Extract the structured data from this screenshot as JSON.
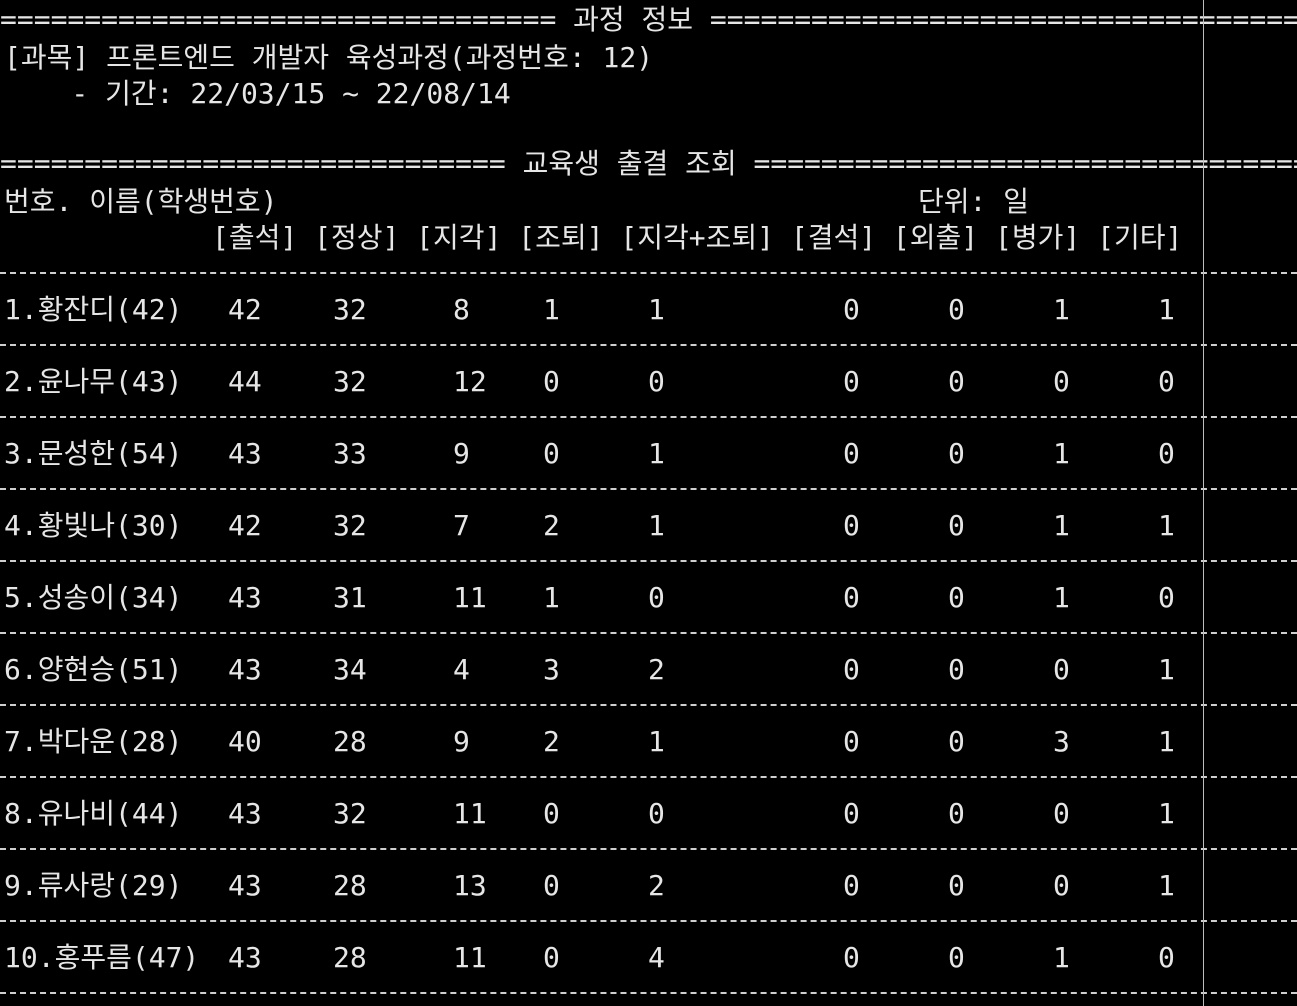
{
  "course_banner": "================================= 과정 정보 =========================================",
  "course": {
    "subject_line": "[과목] 프론트엔드 개발자 육성과정(과정번호: 12)",
    "period_line": "    - 기간: 22/03/15 ~ 22/08/14"
  },
  "attendance_banner": "============================== 교육생 출결 조회 ========================================",
  "header": {
    "name_col": "번호. 이름(학생번호)",
    "unit": "단위: 일",
    "columns": "[출석] [정상] [지각] [조퇴] [지각+조퇴] [결석] [외출] [병가] [기타]"
  },
  "students": [
    {
      "label": "1.황잔디(42)",
      "values": [
        "42",
        "32",
        "8",
        "1",
        "1",
        "0",
        "0",
        "1",
        "1"
      ]
    },
    {
      "label": "2.윤나무(43)",
      "values": [
        "44",
        "32",
        "12",
        "0",
        "0",
        "0",
        "0",
        "0",
        "0"
      ]
    },
    {
      "label": "3.문성한(54)",
      "values": [
        "43",
        "33",
        "9",
        "0",
        "1",
        "0",
        "0",
        "1",
        "0"
      ]
    },
    {
      "label": "4.황빛나(30)",
      "values": [
        "42",
        "32",
        "7",
        "2",
        "1",
        "0",
        "0",
        "1",
        "1"
      ]
    },
    {
      "label": "5.성송이(34)",
      "values": [
        "43",
        "31",
        "11",
        "1",
        "0",
        "0",
        "0",
        "1",
        "0"
      ]
    },
    {
      "label": "6.양현승(51)",
      "values": [
        "43",
        "34",
        "4",
        "3",
        "2",
        "0",
        "0",
        "0",
        "1"
      ]
    },
    {
      "label": "7.박다운(28)",
      "values": [
        "40",
        "28",
        "9",
        "2",
        "1",
        "0",
        "0",
        "3",
        "1"
      ]
    },
    {
      "label": "8.유나비(44)",
      "values": [
        "43",
        "32",
        "11",
        "0",
        "0",
        "0",
        "0",
        "0",
        "1"
      ]
    },
    {
      "label": "9.류사랑(29)",
      "values": [
        "43",
        "28",
        "13",
        "0",
        "2",
        "0",
        "0",
        "0",
        "1"
      ]
    },
    {
      "label": "10.홍푸름(47)",
      "values": [
        "43",
        "28",
        "11",
        "0",
        "4",
        "0",
        "0",
        "1",
        "0"
      ]
    }
  ]
}
